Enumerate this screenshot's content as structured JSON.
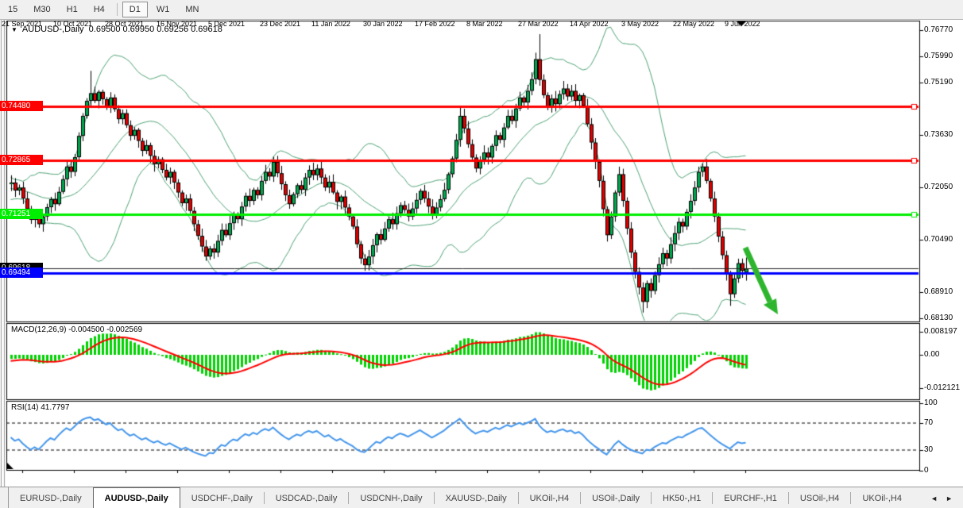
{
  "toolbar": {
    "timeframes": [
      "15",
      "M30",
      "H1",
      "H4",
      "D1",
      "W1",
      "MN"
    ],
    "active": "D1"
  },
  "chart": {
    "collapse_icon": "▼",
    "symbol_title": "AUDUSD-,Daily",
    "ohlc_text": "0.69500 0.69950 0.69256 0.69618"
  },
  "price_scale": {
    "plain_ticks": [
      {
        "label": "0.76770",
        "value": 0.7677
      },
      {
        "label": "0.75990",
        "value": 0.7599
      },
      {
        "label": "0.75190",
        "value": 0.7519
      },
      {
        "label": "0.73630",
        "value": 0.7363
      },
      {
        "label": "0.72050",
        "value": 0.7205
      },
      {
        "label": "0.70490",
        "value": 0.7049
      },
      {
        "label": "0.68910",
        "value": 0.6891
      },
      {
        "label": "0.68130",
        "value": 0.6813
      }
    ],
    "tags": [
      {
        "label": "0.74480",
        "value": 0.7448,
        "bg": "#ff0000",
        "fg": "#ffffff"
      },
      {
        "label": "0.72865",
        "value": 0.72865,
        "bg": "#ff0000",
        "fg": "#ffffff"
      },
      {
        "label": "0.71251",
        "value": 0.71251,
        "bg": "#00ee00",
        "fg": "#ffffff"
      },
      {
        "label": "0.69618",
        "value": 0.69618,
        "bg": "#000000",
        "fg": "#ffffff"
      },
      {
        "label": "0.69494",
        "value": 0.69494,
        "bg": "#0000ff",
        "fg": "#ffffff"
      }
    ]
  },
  "macd_panel": {
    "label": "MACD(12,26,9)",
    "values_text": "-0.004500 -0.002569",
    "scale": [
      {
        "label": "0.008197",
        "value": 0.008197
      },
      {
        "label": "0.00",
        "value": 0
      },
      {
        "label": "-0.012121",
        "value": -0.012121
      }
    ]
  },
  "rsi_panel": {
    "label": "RSI(14) 41.7797",
    "scale": [
      {
        "label": "100",
        "value": 100
      },
      {
        "label": "70",
        "value": 70
      },
      {
        "label": "30",
        "value": 30
      },
      {
        "label": "0",
        "value": 0
      }
    ],
    "dashed_levels": [
      70,
      30
    ]
  },
  "time_axis": {
    "labels": [
      "21 Sep 2021",
      "10 Oct 2021",
      "28 Oct 2021",
      "16 Nov 2021",
      "5 Dec 2021",
      "23 Dec 2021",
      "11 Jan 2022",
      "30 Jan 2022",
      "17 Feb 2022",
      "8 Mar 2022",
      "27 Mar 2022",
      "14 Apr 2022",
      "3 May 2022",
      "22 May 2022",
      "9 Jun 2022"
    ]
  },
  "tabs": {
    "items": [
      "EURUSD-,Daily",
      "AUDUSD-,Daily",
      "USDCHF-,Daily",
      "USDCAD-,Daily",
      "USDCNH-,Daily",
      "XAUUSD-,Daily",
      "UKOil-,H4",
      "USOil-,Daily",
      "HK50-,H1",
      "EURCHF-,H1",
      "USOil-,H4",
      "UKOil-,H4"
    ],
    "active": "AUDUSD-,Daily",
    "nav_prev": "◄",
    "nav_next": "►"
  },
  "colors": {
    "bull": "#00a94e",
    "bear": "#e00000",
    "wick": "#000000",
    "bollinger": "#4fa376",
    "hline_red": "#ff0000",
    "hline_green": "#00ee00",
    "hline_blue": "#0000ff",
    "current_price_line": "#222222",
    "macd_hist": "#00d200",
    "macd_signal": "#ff0000",
    "rsi_line": "#4496ec",
    "arrow": "#2db52d"
  },
  "chart_data": {
    "type": "candlestick",
    "title": "AUDUSD-,Daily",
    "last_bar_ohlc": {
      "open": 0.695,
      "high": 0.6995,
      "low": 0.69256,
      "close": 0.69618
    },
    "y_range": [
      0.6813,
      0.7677
    ],
    "hlines": [
      {
        "price": 0.7448,
        "color": "red",
        "style": "solid",
        "width": 3
      },
      {
        "price": 0.72865,
        "color": "red",
        "style": "solid",
        "width": 3
      },
      {
        "price": 0.71251,
        "color": "green",
        "style": "solid",
        "width": 3
      },
      {
        "price": 0.69494,
        "color": "blue",
        "style": "solid",
        "width": 3
      },
      {
        "price": 0.69618,
        "color": "black",
        "style": "thin",
        "width": 1
      }
    ],
    "indicators": [
      {
        "type": "bollinger",
        "period": 20,
        "deviation": 2
      },
      {
        "type": "macd",
        "fast": 12,
        "slow": 26,
        "signal": 9,
        "display_values": [
          -0.0045,
          -0.002569
        ],
        "scale_range": [
          -0.012121,
          0.008197
        ]
      },
      {
        "type": "rsi",
        "period": 14,
        "current_value": 41.7797,
        "levels": [
          70,
          30
        ]
      }
    ],
    "trend_arrow": {
      "from_price_x": 938,
      "from_price": 0.7025,
      "to_x": 979,
      "to_price": 0.6845,
      "direction": "down-right"
    },
    "pre_closes": [
      0.735,
      0.7342,
      0.7355,
      0.733,
      0.7318,
      0.7332,
      0.731,
      0.7295,
      0.7308,
      0.7288,
      0.7275,
      0.729,
      0.7268,
      0.7255,
      0.727,
      0.7248,
      0.7262,
      0.724,
      0.7228,
      0.7245,
      0.7222,
      0.7238,
      0.7215,
      0.723,
      0.7208,
      0.7195,
      0.7212,
      0.719,
      0.7205,
      0.7185,
      0.7198,
      0.7178,
      0.7192,
      0.717,
      0.7185,
      0.7205,
      0.7192,
      0.721,
      0.7198,
      0.7215
    ],
    "closes": [
      0.722,
      0.7196,
      0.7205,
      0.7172,
      0.714,
      0.7108,
      0.7122,
      0.7095,
      0.7118,
      0.7146,
      0.717,
      0.7155,
      0.7192,
      0.723,
      0.7268,
      0.7252,
      0.7296,
      0.736,
      0.742,
      0.7465,
      0.7488,
      0.7465,
      0.7492,
      0.747,
      0.7448,
      0.7475,
      0.744,
      0.741,
      0.7428,
      0.7392,
      0.736,
      0.7378,
      0.7345,
      0.7315,
      0.7332,
      0.73,
      0.7275,
      0.729,
      0.7258,
      0.7235,
      0.7252,
      0.722,
      0.719,
      0.7158,
      0.7172,
      0.7135,
      0.7095,
      0.706,
      0.7028,
      0.6998,
      0.7022,
      0.701,
      0.7045,
      0.7078,
      0.7062,
      0.7098,
      0.7125,
      0.711,
      0.7148,
      0.718,
      0.7165,
      0.7198,
      0.7182,
      0.7225,
      0.7252,
      0.7238,
      0.7282,
      0.7248,
      0.7215,
      0.7182,
      0.7155,
      0.7185,
      0.7212,
      0.7198,
      0.7235,
      0.7258,
      0.7242,
      0.7262,
      0.7235,
      0.7205,
      0.7222,
      0.719,
      0.7162,
      0.7178,
      0.7145,
      0.7118,
      0.7088,
      0.7035,
      0.6992,
      0.6972,
      0.6998,
      0.7032,
      0.7065,
      0.7048,
      0.7082,
      0.711,
      0.7095,
      0.7128,
      0.7152,
      0.7138,
      0.7118,
      0.7142,
      0.7168,
      0.7195,
      0.7172,
      0.7148,
      0.7122,
      0.7145,
      0.717,
      0.7198,
      0.7245,
      0.7292,
      0.7348,
      0.742,
      0.7382,
      0.7335,
      0.7295,
      0.7262,
      0.7288,
      0.731,
      0.7295,
      0.733,
      0.7362,
      0.7348,
      0.7385,
      0.742,
      0.7405,
      0.7442,
      0.7475,
      0.746,
      0.7495,
      0.753,
      0.759,
      0.7528,
      0.7482,
      0.7448,
      0.7472,
      0.7455,
      0.7485,
      0.7502,
      0.7478,
      0.7495,
      0.7465,
      0.7482,
      0.745,
      0.7395,
      0.734,
      0.7282,
      0.7225,
      0.714,
      0.7062,
      0.7118,
      0.719,
      0.7245,
      0.7165,
      0.7082,
      0.701,
      0.6952,
      0.6905,
      0.6862,
      0.6918,
      0.6895,
      0.6942,
      0.6975,
      0.7008,
      0.6992,
      0.7035,
      0.7068,
      0.7102,
      0.7088,
      0.7132,
      0.7165,
      0.7205,
      0.7252,
      0.7268,
      0.7225,
      0.7172,
      0.7118,
      0.7058,
      0.7002,
      0.6945,
      0.6885,
      0.6932,
      0.6978,
      0.6955,
      0.69618
    ],
    "wick_overrides": {
      "20": {
        "high": 0.7555
      },
      "49": {
        "low": 0.6985
      },
      "89": {
        "low": 0.6955
      },
      "113": {
        "high": 0.7448
      },
      "133": {
        "high": 0.7665
      },
      "159": {
        "low": 0.683
      },
      "181": {
        "low": 0.685
      },
      "185": {
        "open": 0.695,
        "high": 0.6995,
        "low": 0.69256,
        "close": 0.69618
      }
    }
  }
}
